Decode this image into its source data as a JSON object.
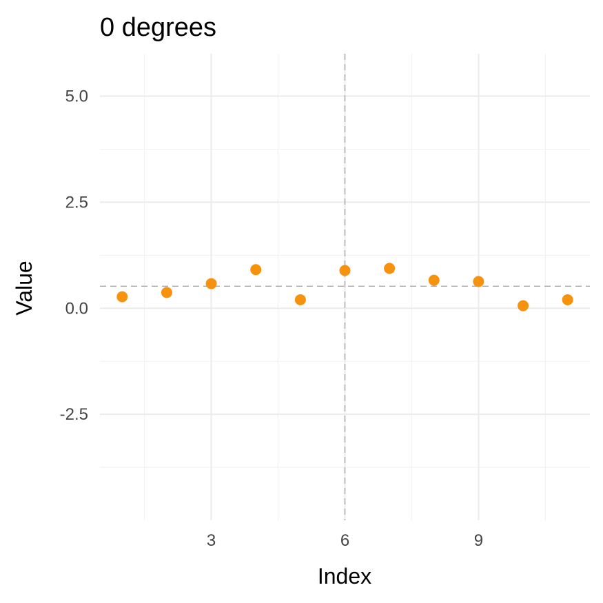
{
  "chart_data": {
    "type": "scatter",
    "title": "0 degrees",
    "xlabel": "Index",
    "ylabel": "Value",
    "x": [
      1,
      2,
      3,
      4,
      5,
      6,
      7,
      8,
      9,
      10,
      11
    ],
    "y": [
      0.27,
      0.37,
      0.58,
      0.91,
      0.2,
      0.89,
      0.94,
      0.66,
      0.63,
      0.06,
      0.2
    ],
    "xlim": [
      0.5,
      11.5
    ],
    "ylim": [
      -5.0,
      6.0
    ],
    "x_ticks": [
      3,
      6,
      9
    ],
    "x_tick_labels": [
      "3",
      "6",
      "9"
    ],
    "x_minor_ticks": [
      1.5,
      4.5,
      7.5,
      10.5
    ],
    "y_ticks": [
      -2.5,
      0.0,
      2.5,
      5.0
    ],
    "y_tick_labels": [
      "-2.5",
      "0.0",
      "2.5",
      "5.0"
    ],
    "y_minor_ticks": [
      -3.75,
      -1.25,
      1.25,
      3.75
    ],
    "hline": 0.52,
    "vline": 6,
    "grid": true,
    "legend": "none",
    "point_color": "#f7920f",
    "ref_line_color": "#a6a6a6"
  }
}
